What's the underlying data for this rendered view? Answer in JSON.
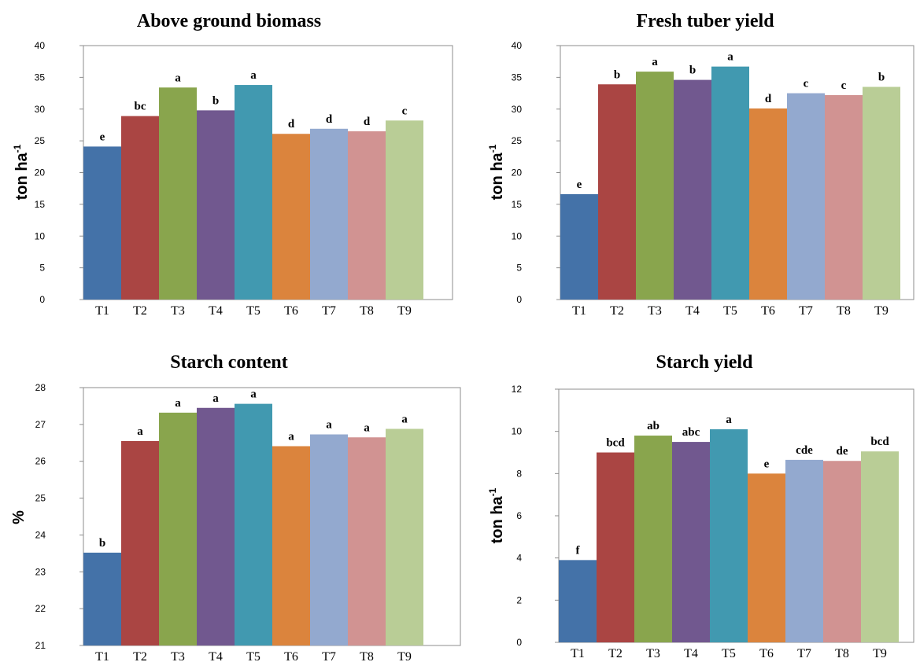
{
  "colors": [
    "#4472a8",
    "#aa4543",
    "#89a54d",
    "#71588f",
    "#4199b0",
    "#db843d",
    "#93a9cf",
    "#d19392",
    "#b9cd96"
  ],
  "chart_data": [
    {
      "type": "bar",
      "title": "Above ground biomass",
      "ylabel_main": "ton ha",
      "ylabel_sup": "-1",
      "categories": [
        "T1",
        "T2",
        "T3",
        "T4",
        "T5",
        "T6",
        "T7",
        "T8",
        "T9"
      ],
      "values": [
        24.1,
        28.9,
        33.4,
        29.8,
        33.8,
        26.1,
        26.9,
        26.5,
        28.2
      ],
      "labels": [
        "e",
        "bc",
        "a",
        "b",
        "a",
        "d",
        "d",
        "d",
        "c"
      ],
      "ylim": [
        0,
        40
      ],
      "yticks": [
        0,
        5,
        10,
        15,
        20,
        25,
        30,
        35,
        40
      ],
      "grid": false,
      "legend": "none"
    },
    {
      "type": "bar",
      "title": "Fresh tuber yield",
      "ylabel_main": "ton ha",
      "ylabel_sup": "-1",
      "categories": [
        "T1",
        "T2",
        "T3",
        "T4",
        "T5",
        "T6",
        "T7",
        "T8",
        "T9"
      ],
      "values": [
        16.6,
        33.9,
        35.9,
        34.6,
        36.7,
        30.1,
        32.5,
        32.2,
        33.5
      ],
      "labels": [
        "e",
        "b",
        "a",
        "b",
        "a",
        "d",
        "c",
        "c",
        "b"
      ],
      "ylim": [
        0,
        40
      ],
      "yticks": [
        0,
        5,
        10,
        15,
        20,
        25,
        30,
        35,
        40
      ],
      "grid": false,
      "legend": "none"
    },
    {
      "type": "bar",
      "title": "Starch content",
      "ylabel_main": "%",
      "ylabel_sup": "",
      "categories": [
        "T1",
        "T2",
        "T3",
        "T4",
        "T5",
        "T6",
        "T7",
        "T8",
        "T9"
      ],
      "values": [
        23.52,
        26.55,
        27.32,
        27.45,
        27.56,
        26.41,
        26.73,
        26.65,
        26.88
      ],
      "labels": [
        "b",
        "a",
        "a",
        "a",
        "a",
        "a",
        "a",
        "a",
        "a"
      ],
      "ylim": [
        21,
        28
      ],
      "yticks": [
        21,
        22,
        23,
        24,
        25,
        26,
        27,
        28
      ],
      "grid": false,
      "legend": "none"
    },
    {
      "type": "bar",
      "title": "Starch yield",
      "ylabel_main": "ton ha",
      "ylabel_sup": "-1",
      "categories": [
        "T1",
        "T2",
        "T3",
        "T4",
        "T5",
        "T6",
        "T7",
        "T8",
        "T9"
      ],
      "values": [
        3.9,
        9.0,
        9.8,
        9.5,
        10.1,
        8.0,
        8.65,
        8.6,
        9.05
      ],
      "labels": [
        "f",
        "bcd",
        "ab",
        "abc",
        "a",
        "e",
        "cde",
        "de",
        "bcd"
      ],
      "ylim": [
        0,
        12
      ],
      "yticks": [
        0,
        2,
        4,
        6,
        8,
        10,
        12
      ],
      "grid": false,
      "legend": "none"
    }
  ]
}
